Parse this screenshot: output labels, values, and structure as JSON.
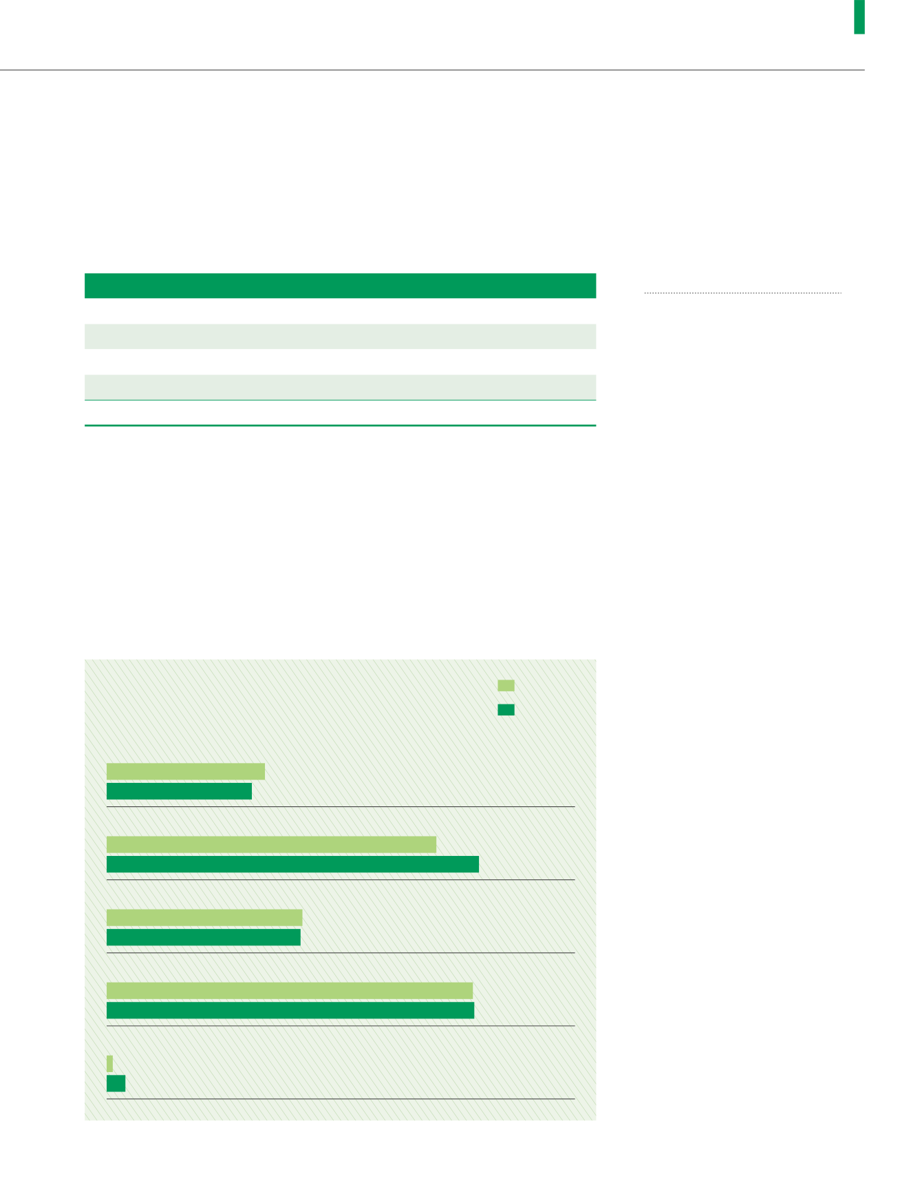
{
  "chart_data": {
    "type": "bar",
    "orientation": "horizontal",
    "categories": [
      null,
      null,
      null,
      null,
      null
    ],
    "series": [
      {
        "color": "#aed47c",
        "values": [
          33.8,
          70.4,
          41.8,
          78.2,
          1.3
        ]
      },
      {
        "color": "#009a5a",
        "values": [
          31.0,
          79.5,
          41.4,
          78.5,
          4.0
        ]
      }
    ],
    "xlim": [
      0,
      100
    ]
  }
}
